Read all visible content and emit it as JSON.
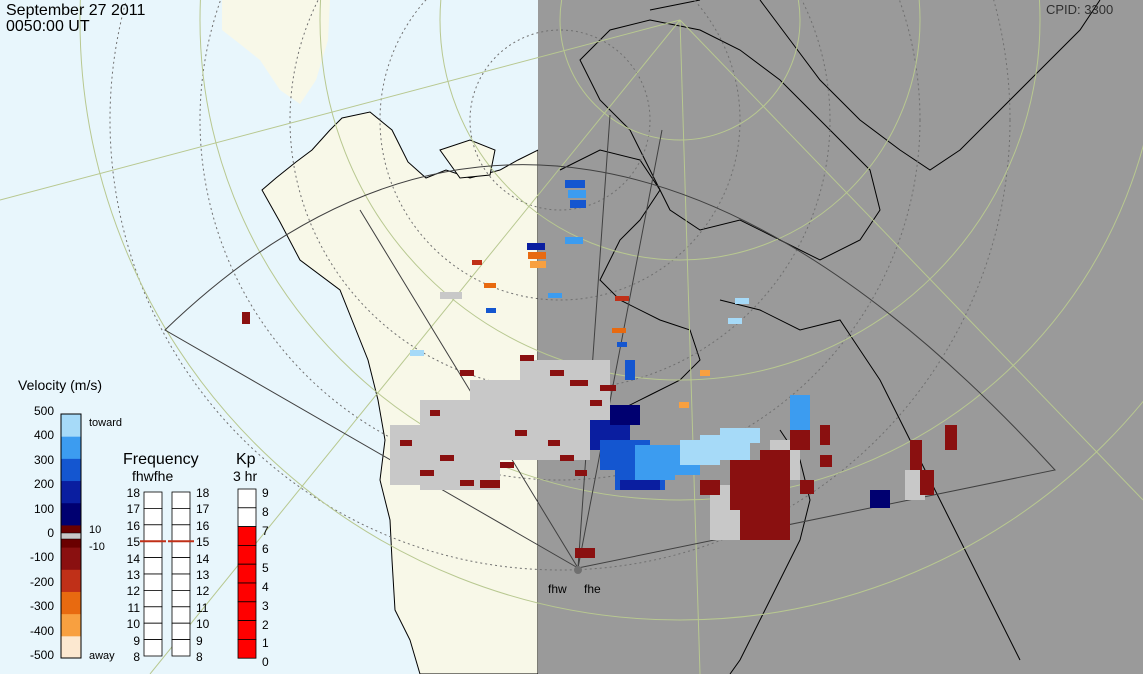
{
  "header": {
    "date": "September 27 2011",
    "time": "0050:00 UT",
    "cpid": "CPID: 3300"
  },
  "radars": {
    "labels": [
      "fhw",
      "fhe"
    ]
  },
  "velocity": {
    "title": "Velocity (m/s)",
    "ticks": [
      "500",
      "400",
      "300",
      "200",
      "100",
      "0",
      "-100",
      "-200",
      "-300",
      "-400",
      "-500"
    ],
    "toward": "toward",
    "away": "away",
    "thr_pos": "10",
    "thr_neg": "-10",
    "colors": [
      "#fce8d0",
      "#f8a040",
      "#e86a10",
      "#c03018",
      "#8a1010",
      "#6a0000",
      "#000070",
      "#0a1ea0",
      "#1456d0",
      "#3c9cf0",
      "#a6daf8"
    ]
  },
  "frequency": {
    "title": "Frequency",
    "subtitle": "fhwfhe",
    "ticks": [
      "18",
      "17",
      "16",
      "15",
      "14",
      "13",
      "12",
      "11",
      "10",
      "9",
      "8"
    ],
    "fhw_value_mhz": 15,
    "fhe_value_mhz": 15
  },
  "kp": {
    "title": "Kp",
    "subtitle": "3 hr",
    "ticks": [
      "9",
      "8",
      "7",
      "6",
      "5",
      "4",
      "3",
      "2",
      "1",
      "0"
    ],
    "value": 7
  },
  "colors": {
    "ocean": "#e8f6fc",
    "land_day": "#f8f8e8",
    "night": "#9a9a9a",
    "coast": "#000000",
    "grid": "#b8c890",
    "low_velocity": "#c8c8c8"
  }
}
